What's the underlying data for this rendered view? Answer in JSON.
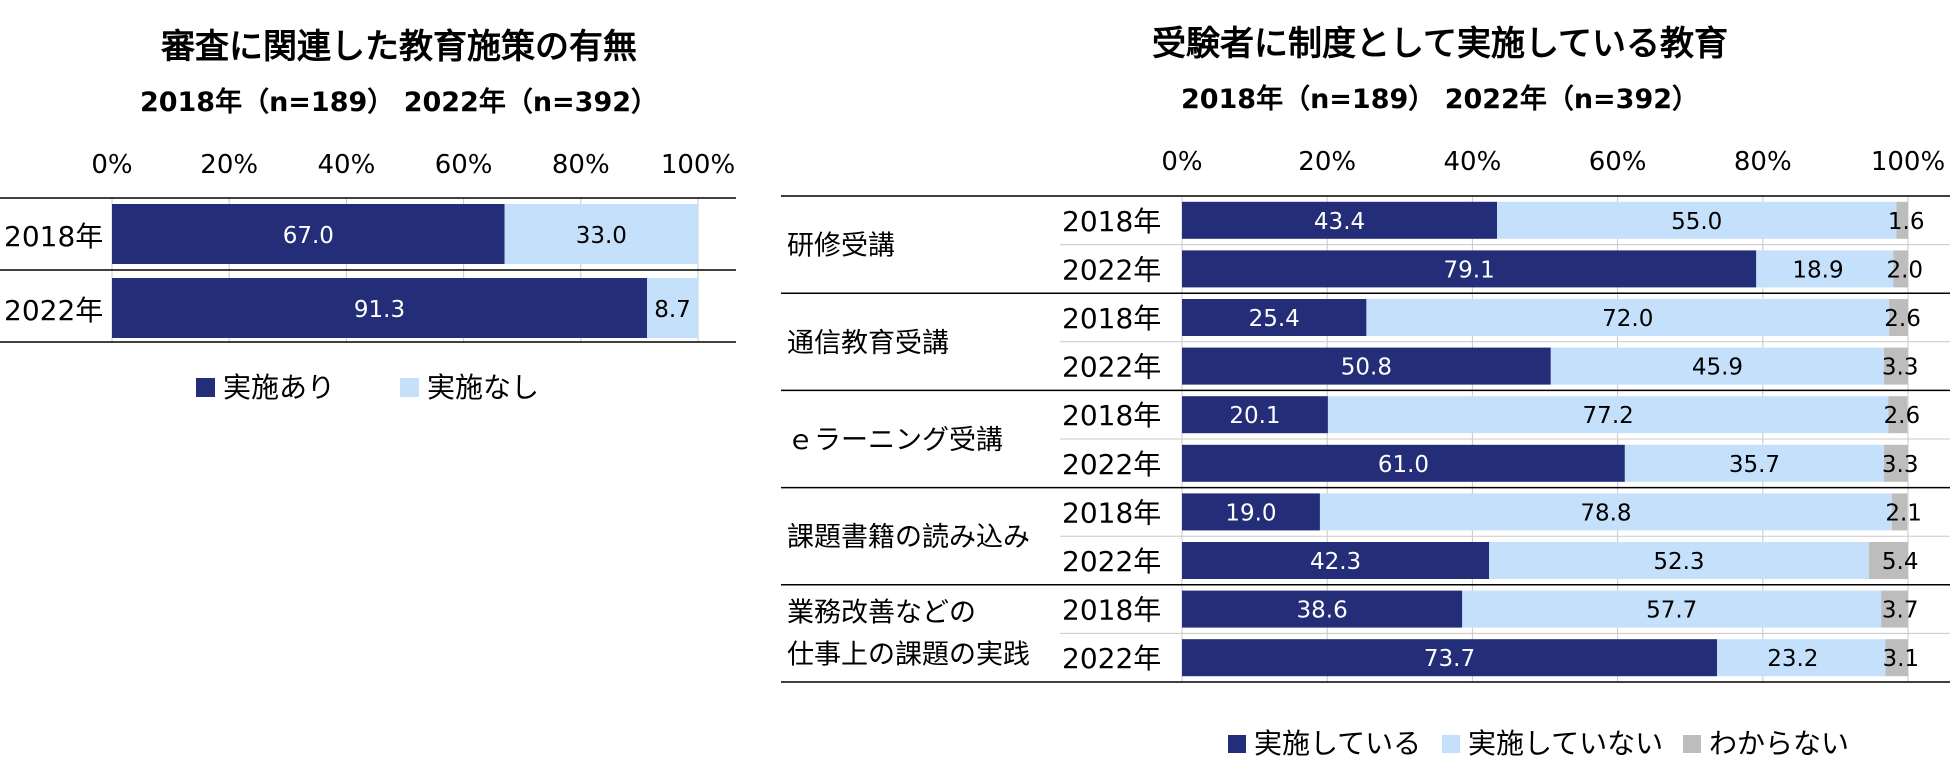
{
  "colors": {
    "implemented": "#232D78",
    "not_implemented": "#C5E0FA",
    "unknown": "#BDBDBD"
  },
  "chart_data": [
    {
      "type": "bar",
      "orientation": "horizontal",
      "stacked": true,
      "percent": true,
      "title": "審査に関連した教育施策の有無",
      "subtitle": "2018年（n=189） 2022年（n=392）",
      "xlim": [
        0,
        100
      ],
      "ticks": [
        "0%",
        "20%",
        "40%",
        "60%",
        "80%",
        "100%"
      ],
      "legend_position": "bottom",
      "categories": [
        "2018年",
        "2022年"
      ],
      "series": [
        {
          "name": "実施あり",
          "color": "#232D78",
          "values": [
            67.0,
            91.3
          ],
          "labels": [
            "67.0",
            "91.3"
          ]
        },
        {
          "name": "実施なし",
          "color": "#C5E0FA",
          "values": [
            33.0,
            8.7
          ],
          "labels": [
            "33.0",
            "8.7"
          ]
        }
      ]
    },
    {
      "type": "bar",
      "orientation": "horizontal",
      "stacked": true,
      "percent": true,
      "title": "受験者に制度として実施している教育",
      "subtitle": "2018年（n=189） 2022年（n=392）",
      "xlim": [
        0,
        100
      ],
      "ticks": [
        "0%",
        "20%",
        "40%",
        "60%",
        "80%",
        "100%"
      ],
      "legend_position": "bottom",
      "groups": [
        {
          "label": [
            "研修受講"
          ]
        },
        {
          "label": [
            "通信教育受講"
          ]
        },
        {
          "label": [
            "ｅラーニング受講"
          ]
        },
        {
          "label": [
            "課題書籍の読み込み"
          ]
        },
        {
          "label": [
            "業務改善などの",
            "仕事上の課題の実践"
          ]
        }
      ],
      "years": [
        "2018年",
        "2022年"
      ],
      "series": [
        {
          "name": "実施している",
          "color": "#232D78",
          "values": [
            43.4,
            79.1,
            25.4,
            50.8,
            20.1,
            61.0,
            19.0,
            42.3,
            38.6,
            73.7
          ],
          "labels": [
            "43.4",
            "79.1",
            "25.4",
            "50.8",
            "20.1",
            "61.0",
            "19.0",
            "42.3",
            "38.6",
            "73.7"
          ]
        },
        {
          "name": "実施していない",
          "color": "#C5E0FA",
          "values": [
            55.0,
            18.9,
            72.0,
            45.9,
            77.2,
            35.7,
            78.8,
            52.3,
            57.7,
            23.2
          ],
          "labels": [
            "55.0",
            "18.9",
            "72.0",
            "45.9",
            "77.2",
            "35.7",
            "78.8",
            "52.3",
            "57.7",
            "23.2"
          ]
        },
        {
          "name": "わからない",
          "color": "#BDBDBD",
          "values": [
            1.6,
            2.0,
            2.6,
            3.3,
            2.6,
            3.3,
            2.1,
            5.4,
            3.7,
            3.1
          ],
          "labels": [
            "1.6",
            "2.0",
            "2.6",
            "3.3",
            "2.6",
            "3.3",
            "2.1",
            "5.4",
            "3.7",
            "3.1"
          ]
        }
      ]
    }
  ]
}
